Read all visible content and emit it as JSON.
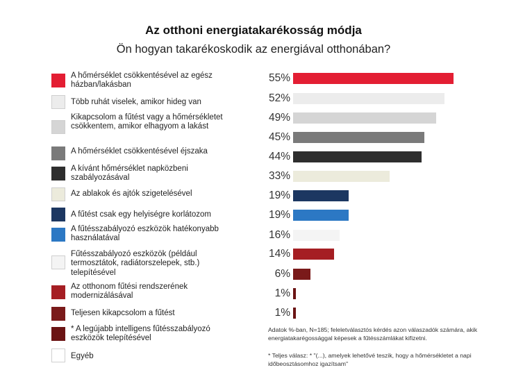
{
  "title": "Az otthoni energiatakarékosság módja",
  "subtitle": "Ön hogyan takarékoskodik az energiával otthonában?",
  "chart_data": {
    "type": "bar",
    "orientation": "horizontal",
    "unit": "%",
    "xlim": [
      0,
      100
    ],
    "categories": [
      "A hőmérséklet csökkentésével az egész házban/lakásban",
      "Több ruhát viselek, amikor hideg van",
      "Kikapcsolom a fűtést vagy a hőmérsékletet csökkentem, amikor elhagyom a lakást",
      "A hőmérséklet csökkentésével éjszaka",
      "A kívánt hőmérséklet napközbeni szabályozásával",
      "Az ablakok és ajtók szigetelésével",
      "A fűtést csak egy helyiségre korlátozom",
      "A fűtésszabályozó eszközök hatékonyabb használatával",
      "Fűtésszabályozó eszközök (például termosztátok, radiátorszelepek, stb.) telepítésével",
      "Az otthonom fűtési rendszerének modernizálásával",
      "Teljesen kikapcsolom a fűtést",
      "* A legújabb intelligens fűtésszabályozó eszközök telepítésével",
      "Egyéb"
    ],
    "values": [
      55,
      52,
      49,
      45,
      44,
      33,
      19,
      19,
      16,
      14,
      6,
      1,
      1
    ],
    "value_labels": [
      "55%",
      "52%",
      "49%",
      "45%",
      "44%",
      "33%",
      "19%",
      "19%",
      "16%",
      "14%",
      "6%",
      "1%",
      "1%"
    ],
    "colors": [
      "#e31e33",
      "#ececec",
      "#d5d5d5",
      "#7a7a7a",
      "#2e2e2e",
      "#ecebdc",
      "#1c3761",
      "#2c78c4",
      "#f4f4f4",
      "#a51e23",
      "#7a1a1a",
      "#6b1414",
      "#ffffff"
    ]
  },
  "notes": [
    "Adatok %-ban, N=185; feleletválasztós kérdés azon válaszadók számára, akik energiatakarégossággal képesek a fűtésszámlákat kifizetni.",
    "* Teljes válasz: * \"(...), amelyek lehetővé teszik, hogy a hőmérsékletet a napi időbeosztásomhoz igazítsam\""
  ]
}
